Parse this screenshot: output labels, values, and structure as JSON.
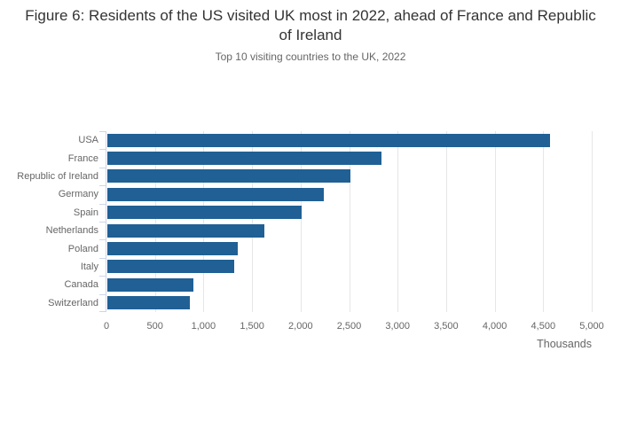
{
  "header": {
    "title": "Figure 6: Residents of the US visited UK most in 2022, ahead of France and Republic of Ireland",
    "subtitle": "Top 10 visiting countries to the UK, 2022"
  },
  "colors": {
    "bar": "#206095",
    "gridline": "#e6e6e6",
    "axis_line": "#ccd6eb",
    "title_text": "#333333",
    "muted_text": "#666666"
  },
  "chart_data": {
    "type": "bar",
    "orientation": "horizontal",
    "title": "Figure 6: Residents of the US visited UK most in 2022, ahead of France and Republic of Ireland",
    "subtitle": "Top 10 visiting countries to the UK, 2022",
    "categories": [
      "USA",
      "France",
      "Republic of Ireland",
      "Germany",
      "Spain",
      "Netherlands",
      "Poland",
      "Italy",
      "Canada",
      "Switzerland"
    ],
    "values": [
      4560,
      2820,
      2500,
      2230,
      2000,
      1620,
      1340,
      1310,
      890,
      850
    ],
    "xlabel": "Thousands",
    "ylabel": "",
    "xlim": [
      0,
      5000
    ],
    "xticks": [
      0,
      500,
      1000,
      1500,
      2000,
      2500,
      3000,
      3500,
      4000,
      4500,
      5000
    ],
    "xtick_labels": [
      "0",
      "500",
      "1,000",
      "1,500",
      "2,000",
      "2,500",
      "3,000",
      "3,500",
      "4,000",
      "4,500",
      "5,000"
    ],
    "grid": "vertical",
    "legend": false
  }
}
